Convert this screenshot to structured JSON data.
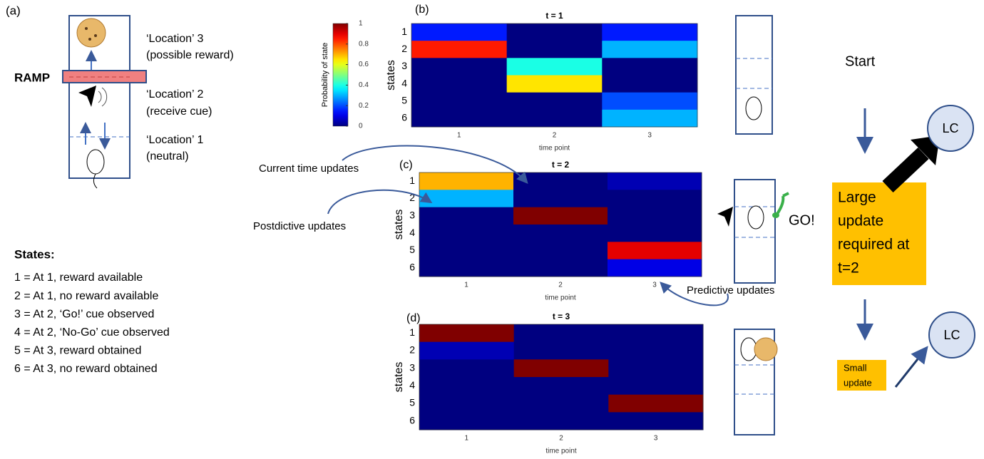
{
  "panel_a": {
    "label": "(a)",
    "ramp": "RAMP",
    "locations": [
      {
        "name": "‘Location’ 3",
        "desc": "(possible reward)"
      },
      {
        "name": "‘Location’ 2",
        "desc": "(receive cue)"
      },
      {
        "name": "‘Location’ 1",
        "desc": "(neutral)"
      }
    ],
    "states_title": "States:",
    "states": [
      "1 = At 1, reward available",
      "2 = At 1, no reward available",
      "3 = At 2, ‘Go!’ cue observed",
      "4 = At 2, ‘No-Go’ cue observed",
      "5 = At 3, reward obtained",
      "6 = At 3, no reward obtained"
    ]
  },
  "colorbar": {
    "label": "Probability of state",
    "lim": [
      0,
      1
    ],
    "ticks": [
      0,
      0.2,
      0.4,
      0.6,
      0.8,
      1
    ]
  },
  "heatmaps": [
    {
      "label": "(b)",
      "title": "t = 1",
      "ylabel": "states",
      "xlabel": "time point",
      "x": [
        "1",
        "2",
        "3"
      ],
      "y": [
        "1",
        "2",
        "3",
        "4",
        "5",
        "6"
      ],
      "values": [
        [
          0.15,
          0,
          0.15
        ],
        [
          0.85,
          0,
          0.3
        ],
        [
          0,
          0.4,
          0
        ],
        [
          0,
          0.65,
          0
        ],
        [
          0,
          0,
          0.2
        ],
        [
          0,
          0,
          0.3
        ]
      ]
    },
    {
      "label": "(c)",
      "title": "t = 2",
      "ylabel": "states",
      "xlabel": "time point",
      "x": [
        "1",
        "2",
        "3"
      ],
      "y": [
        "1",
        "2",
        "3",
        "4",
        "5",
        "6"
      ],
      "values": [
        [
          0.7,
          0,
          0.05
        ],
        [
          0.3,
          0,
          0
        ],
        [
          0,
          1,
          0
        ],
        [
          0,
          0,
          0
        ],
        [
          0,
          0,
          0.9
        ],
        [
          0,
          0,
          0.1
        ]
      ]
    },
    {
      "label": "(d)",
      "title": "t = 3",
      "ylabel": "states",
      "xlabel": "time point",
      "x": [
        "1",
        "2",
        "3"
      ],
      "y": [
        "1",
        "2",
        "3",
        "4",
        "5",
        "6"
      ],
      "values": [
        [
          1,
          0,
          0
        ],
        [
          0.05,
          0,
          0
        ],
        [
          0,
          1,
          0
        ],
        [
          0,
          0,
          0
        ],
        [
          0,
          0,
          1
        ],
        [
          0,
          0,
          0
        ]
      ]
    }
  ],
  "annotations": {
    "current": "Current time updates",
    "postdictive": "Postdictive updates",
    "predictive": "Predictive updates",
    "go": "GO!"
  },
  "flow": {
    "start": "Start",
    "large": [
      "Large",
      "update",
      "required at",
      "t=2"
    ],
    "small": [
      "Small",
      "update"
    ],
    "lc": [
      "LC",
      "LC"
    ]
  }
}
